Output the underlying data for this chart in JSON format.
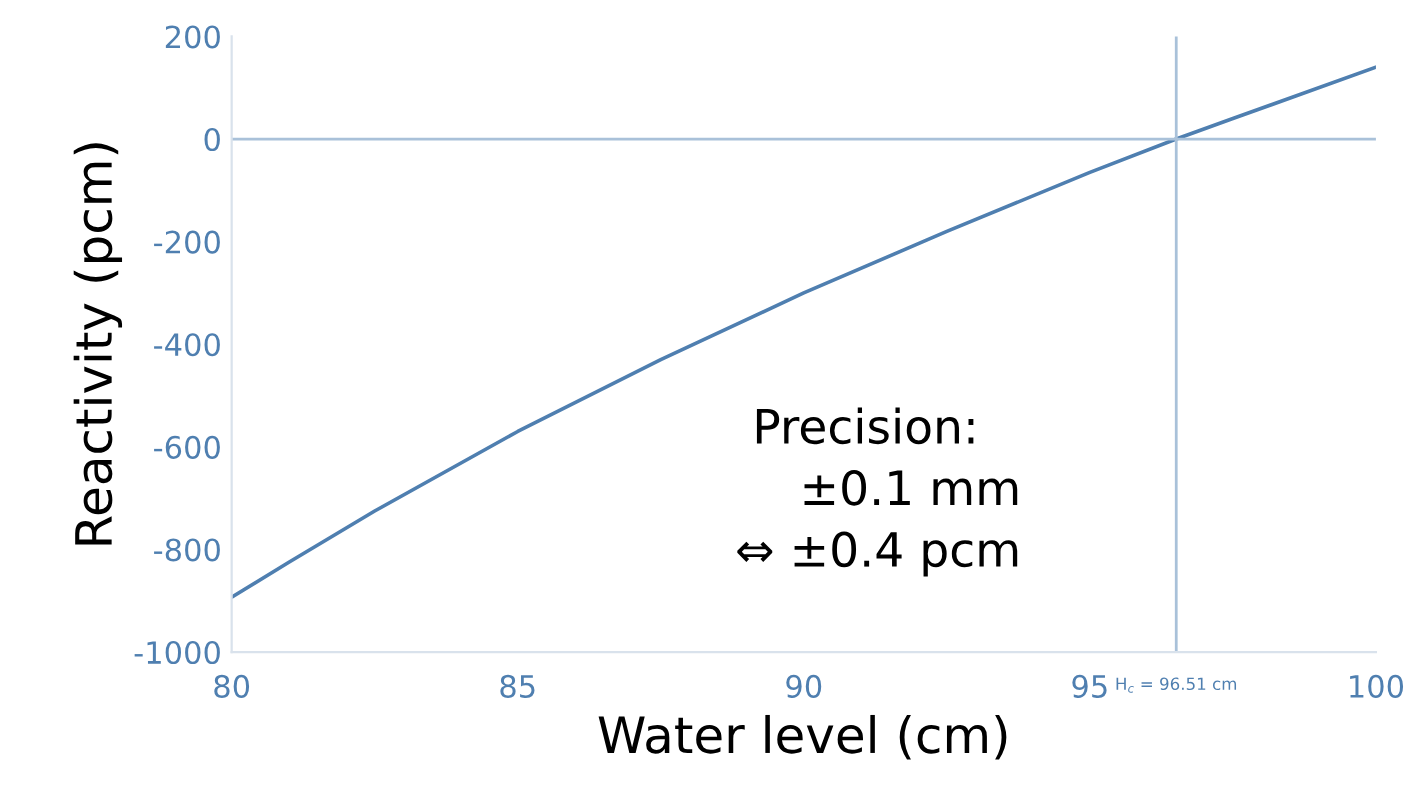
{
  "chart_data": {
    "type": "line",
    "xlabel": "Water level (cm)",
    "ylabel": "Reactivity (pcm)",
    "x": [
      80,
      81,
      82.5,
      85,
      87.5,
      90,
      92.5,
      95,
      96.51,
      97.5,
      100
    ],
    "series": [
      {
        "color": "#4f7fb0",
        "values": [
          -893,
          -825,
          -725,
          -570,
          -430,
          -300,
          -180,
          -65,
          0,
          40,
          140
        ]
      }
    ],
    "xlim": [
      80,
      100
    ],
    "xticks": [
      80,
      85,
      90,
      95,
      100
    ],
    "ylim": [
      -1000,
      200
    ],
    "yticks": [
      -1000,
      -800,
      -600,
      -400,
      -200,
      0,
      200
    ],
    "ref_lines": [
      {
        "axis": "y",
        "value": 0,
        "color": "#a9c1d9"
      },
      {
        "axis": "x",
        "value": 96.51,
        "label": "H$_{c}$ = 96.51 cm",
        "color": "#a9c1d9"
      }
    ],
    "annotations": [
      "Precision:",
      "±0.1 mm",
      "⇔ ±0.4 pcm"
    ],
    "grid": false,
    "legend": false
  }
}
